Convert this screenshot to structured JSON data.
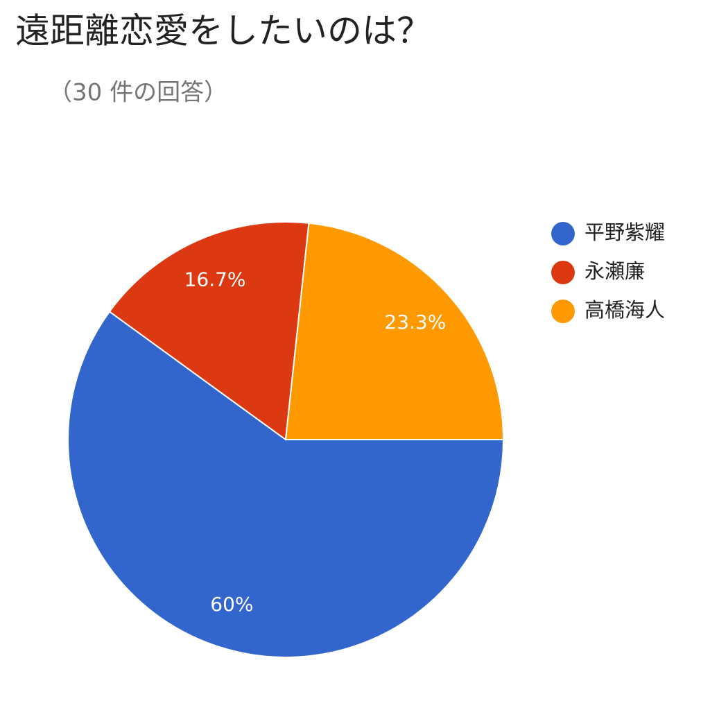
{
  "chart_data": {
    "type": "pie",
    "title": "遠距離恋愛をしたいのは？",
    "subtitle": "（30 件の回答）",
    "categories": [
      "平野紫耀",
      "永瀬廉",
      "高橋海人"
    ],
    "values": [
      60,
      16.7,
      23.3
    ],
    "value_labels": [
      "60%",
      "16.7%",
      "23.3%"
    ],
    "colors": [
      "#3366cc",
      "#dc3912",
      "#ff9900"
    ],
    "legend": "right"
  }
}
